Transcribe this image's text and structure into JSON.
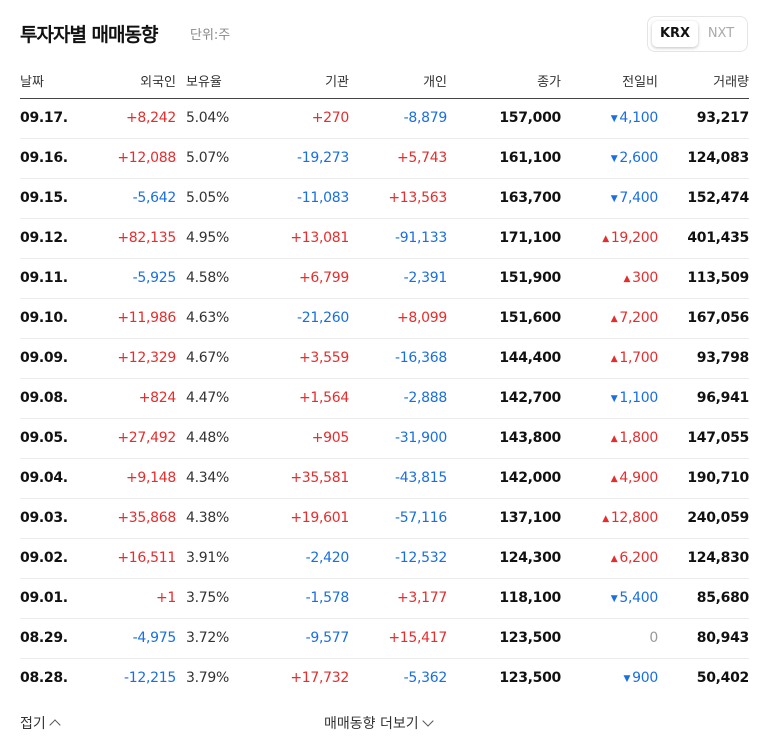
{
  "header": {
    "title": "투자자별 매매동향",
    "unit": "단위:주"
  },
  "tabs": [
    {
      "label": "KRX",
      "active": true
    },
    {
      "label": "NXT",
      "active": false
    }
  ],
  "columns": [
    "날짜",
    "외국인",
    "보유율",
    "기관",
    "개인",
    "종가",
    "전일비",
    "거래량"
  ],
  "rows": [
    {
      "date": "09.17.",
      "foreign": "+8,242",
      "ratio": "5.04%",
      "inst": "+270",
      "indiv": "-8,879",
      "close": "157,000",
      "change": "4,100",
      "dir": "down",
      "volume": "93,217"
    },
    {
      "date": "09.16.",
      "foreign": "+12,088",
      "ratio": "5.07%",
      "inst": "-19,273",
      "indiv": "+5,743",
      "close": "161,100",
      "change": "2,600",
      "dir": "down",
      "volume": "124,083"
    },
    {
      "date": "09.15.",
      "foreign": "-5,642",
      "ratio": "5.05%",
      "inst": "-11,083",
      "indiv": "+13,563",
      "close": "163,700",
      "change": "7,400",
      "dir": "down",
      "volume": "152,474"
    },
    {
      "date": "09.12.",
      "foreign": "+82,135",
      "ratio": "4.95%",
      "inst": "+13,081",
      "indiv": "-91,133",
      "close": "171,100",
      "change": "19,200",
      "dir": "up",
      "volume": "401,435"
    },
    {
      "date": "09.11.",
      "foreign": "-5,925",
      "ratio": "4.58%",
      "inst": "+6,799",
      "indiv": "-2,391",
      "close": "151,900",
      "change": "300",
      "dir": "up",
      "volume": "113,509"
    },
    {
      "date": "09.10.",
      "foreign": "+11,986",
      "ratio": "4.63%",
      "inst": "-21,260",
      "indiv": "+8,099",
      "close": "151,600",
      "change": "7,200",
      "dir": "up",
      "volume": "167,056"
    },
    {
      "date": "09.09.",
      "foreign": "+12,329",
      "ratio": "4.67%",
      "inst": "+3,559",
      "indiv": "-16,368",
      "close": "144,400",
      "change": "1,700",
      "dir": "up",
      "volume": "93,798"
    },
    {
      "date": "09.08.",
      "foreign": "+824",
      "ratio": "4.47%",
      "inst": "+1,564",
      "indiv": "-2,888",
      "close": "142,700",
      "change": "1,100",
      "dir": "down",
      "volume": "96,941"
    },
    {
      "date": "09.05.",
      "foreign": "+27,492",
      "ratio": "4.48%",
      "inst": "+905",
      "indiv": "-31,900",
      "close": "143,800",
      "change": "1,800",
      "dir": "up",
      "volume": "147,055"
    },
    {
      "date": "09.04.",
      "foreign": "+9,148",
      "ratio": "4.34%",
      "inst": "+35,581",
      "indiv": "-43,815",
      "close": "142,000",
      "change": "4,900",
      "dir": "up",
      "volume": "190,710"
    },
    {
      "date": "09.03.",
      "foreign": "+35,868",
      "ratio": "4.38%",
      "inst": "+19,601",
      "indiv": "-57,116",
      "close": "137,100",
      "change": "12,800",
      "dir": "up",
      "volume": "240,059"
    },
    {
      "date": "09.02.",
      "foreign": "+16,511",
      "ratio": "3.91%",
      "inst": "-2,420",
      "indiv": "-12,532",
      "close": "124,300",
      "change": "6,200",
      "dir": "up",
      "volume": "124,830"
    },
    {
      "date": "09.01.",
      "foreign": "+1",
      "ratio": "3.75%",
      "inst": "-1,578",
      "indiv": "+3,177",
      "close": "118,100",
      "change": "5,400",
      "dir": "down",
      "volume": "85,680"
    },
    {
      "date": "08.29.",
      "foreign": "-4,975",
      "ratio": "3.72%",
      "inst": "-9,577",
      "indiv": "+15,417",
      "close": "123,500",
      "change": "0",
      "dir": "flat",
      "volume": "80,943"
    },
    {
      "date": "08.28.",
      "foreign": "-12,215",
      "ratio": "3.79%",
      "inst": "+17,732",
      "indiv": "-5,362",
      "close": "123,500",
      "change": "900",
      "dir": "down",
      "volume": "50,402"
    }
  ],
  "footer": {
    "fold_label": "접기",
    "more_label": "매매동향 더보기"
  },
  "colors": {
    "up": "#e52d2d",
    "down": "#1a6fe0",
    "flat": "#999999"
  }
}
